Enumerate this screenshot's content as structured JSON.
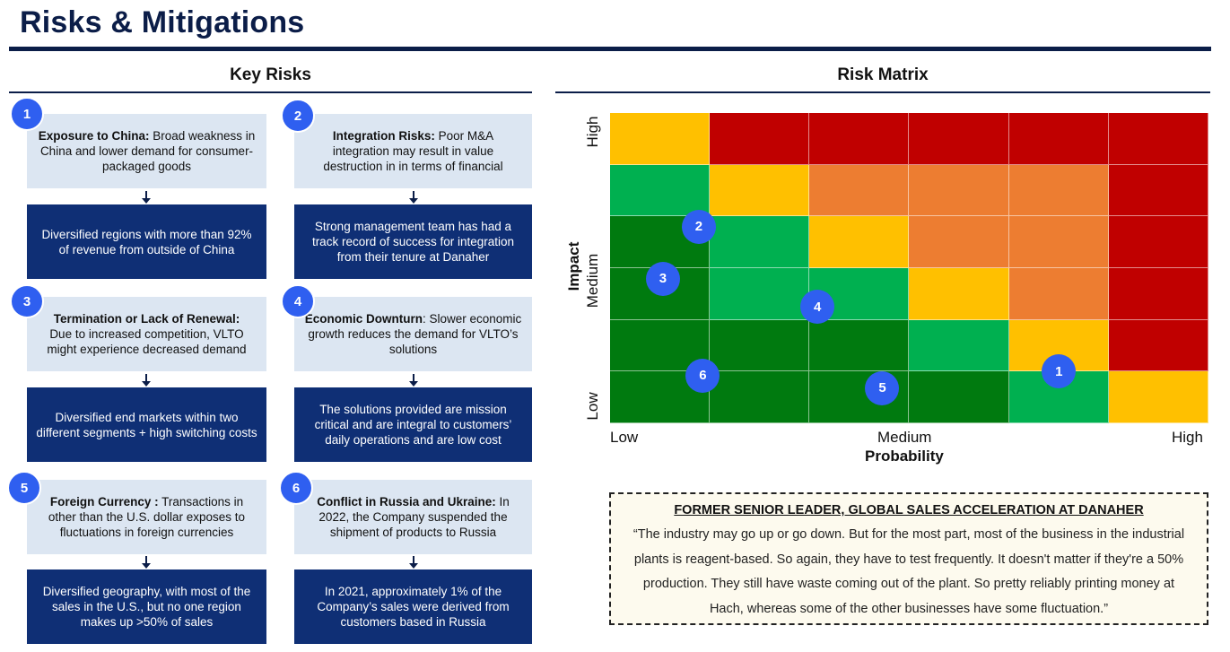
{
  "page": {
    "title": "Risks & Mitigations"
  },
  "key_risks": {
    "title": "Key Risks",
    "items": [
      {
        "number": "1",
        "risk_title": "Exposure to China:",
        "risk_text": " Broad weakness in China and lower demand for consumer-packaged goods",
        "mitigation": "Diversified regions with more than 92% of revenue from outside of China"
      },
      {
        "number": "2",
        "risk_title": "Integration Risks:",
        "risk_text": " Poor M&A integration may result in value destruction in in terms of financial",
        "mitigation": "Strong management team has had a track record of success for integration from their tenure at Danaher"
      },
      {
        "number": "3",
        "risk_title": "Termination or Lack of Renewal:",
        "risk_text": "Due to increased competition, VLTO might experience decreased demand",
        "mitigation": "Diversified end markets within two different segments + high switching costs"
      },
      {
        "number": "4",
        "risk_title": "Economic Downturn",
        "risk_text": ": Slower economic growth reduces the demand for VLTO’s solutions",
        "mitigation": "The solutions provided are mission critical and are integral to customers’ daily operations and are low cost"
      },
      {
        "number": "5",
        "risk_title": "Foreign Currency :",
        "risk_text": " Transactions in other than the U.S. dollar exposes to fluctuations in foreign currencies",
        "mitigation": "Diversified geography, with most of the sales in the U.S., but no one region makes up >50% of sales"
      },
      {
        "number": "6",
        "risk_title": "Conflict in Russia and Ukraine:",
        "risk_text": " In 2022, the Company suspended the shipment of products to Russia",
        "mitigation": "In 2021, approximately 1% of the Company’s sales were derived from customers based in Russia"
      }
    ]
  },
  "risk_matrix": {
    "title": "Risk Matrix",
    "x_axis": {
      "title": "Probability",
      "ticks": [
        "Low",
        "Medium",
        "High"
      ]
    },
    "y_axis": {
      "title": "Impact",
      "ticks": [
        "Low",
        "Medium",
        "High"
      ]
    },
    "colors": {
      "Y": "#ffc000",
      "R": "#c00000",
      "O": "#ed7d31",
      "G": "#00b050",
      "D": "#007a0f"
    },
    "grid_rows_top_to_bottom": [
      [
        "Y",
        "R",
        "R",
        "R",
        "R",
        "R"
      ],
      [
        "G",
        "Y",
        "O",
        "O",
        "O",
        "R"
      ],
      [
        "D",
        "G",
        "Y",
        "O",
        "O",
        "R"
      ],
      [
        "D",
        "G",
        "G",
        "Y",
        "O",
        "R"
      ],
      [
        "D",
        "D",
        "D",
        "G",
        "Y",
        "R"
      ],
      [
        "D",
        "D",
        "D",
        "D",
        "G",
        "Y"
      ]
    ],
    "markers": [
      {
        "label": "1",
        "probability_col": 4.5,
        "impact_row": 1.0
      },
      {
        "label": "2",
        "probability_col": 0.89,
        "impact_row": 3.8
      },
      {
        "label": "3",
        "probability_col": 0.53,
        "impact_row": 2.8
      },
      {
        "label": "4",
        "probability_col": 2.08,
        "impact_row": 2.25
      },
      {
        "label": "5",
        "probability_col": 2.73,
        "impact_row": 0.68
      },
      {
        "label": "6",
        "probability_col": 0.93,
        "impact_row": 0.92
      }
    ]
  },
  "quote": {
    "heading": "FORMER SENIOR LEADER, GLOBAL SALES ACCELERATION AT DANAHER",
    "text": "“The industry may go up or go down. But for the most part, most of the business in the industrial plants is reagent-based. So again, they have to test frequently. It doesn't matter if they're a 50% production. They still have waste coming out of the plant. So pretty reliably printing money at Hach, whereas some of the other businesses have some fluctuation.”"
  }
}
